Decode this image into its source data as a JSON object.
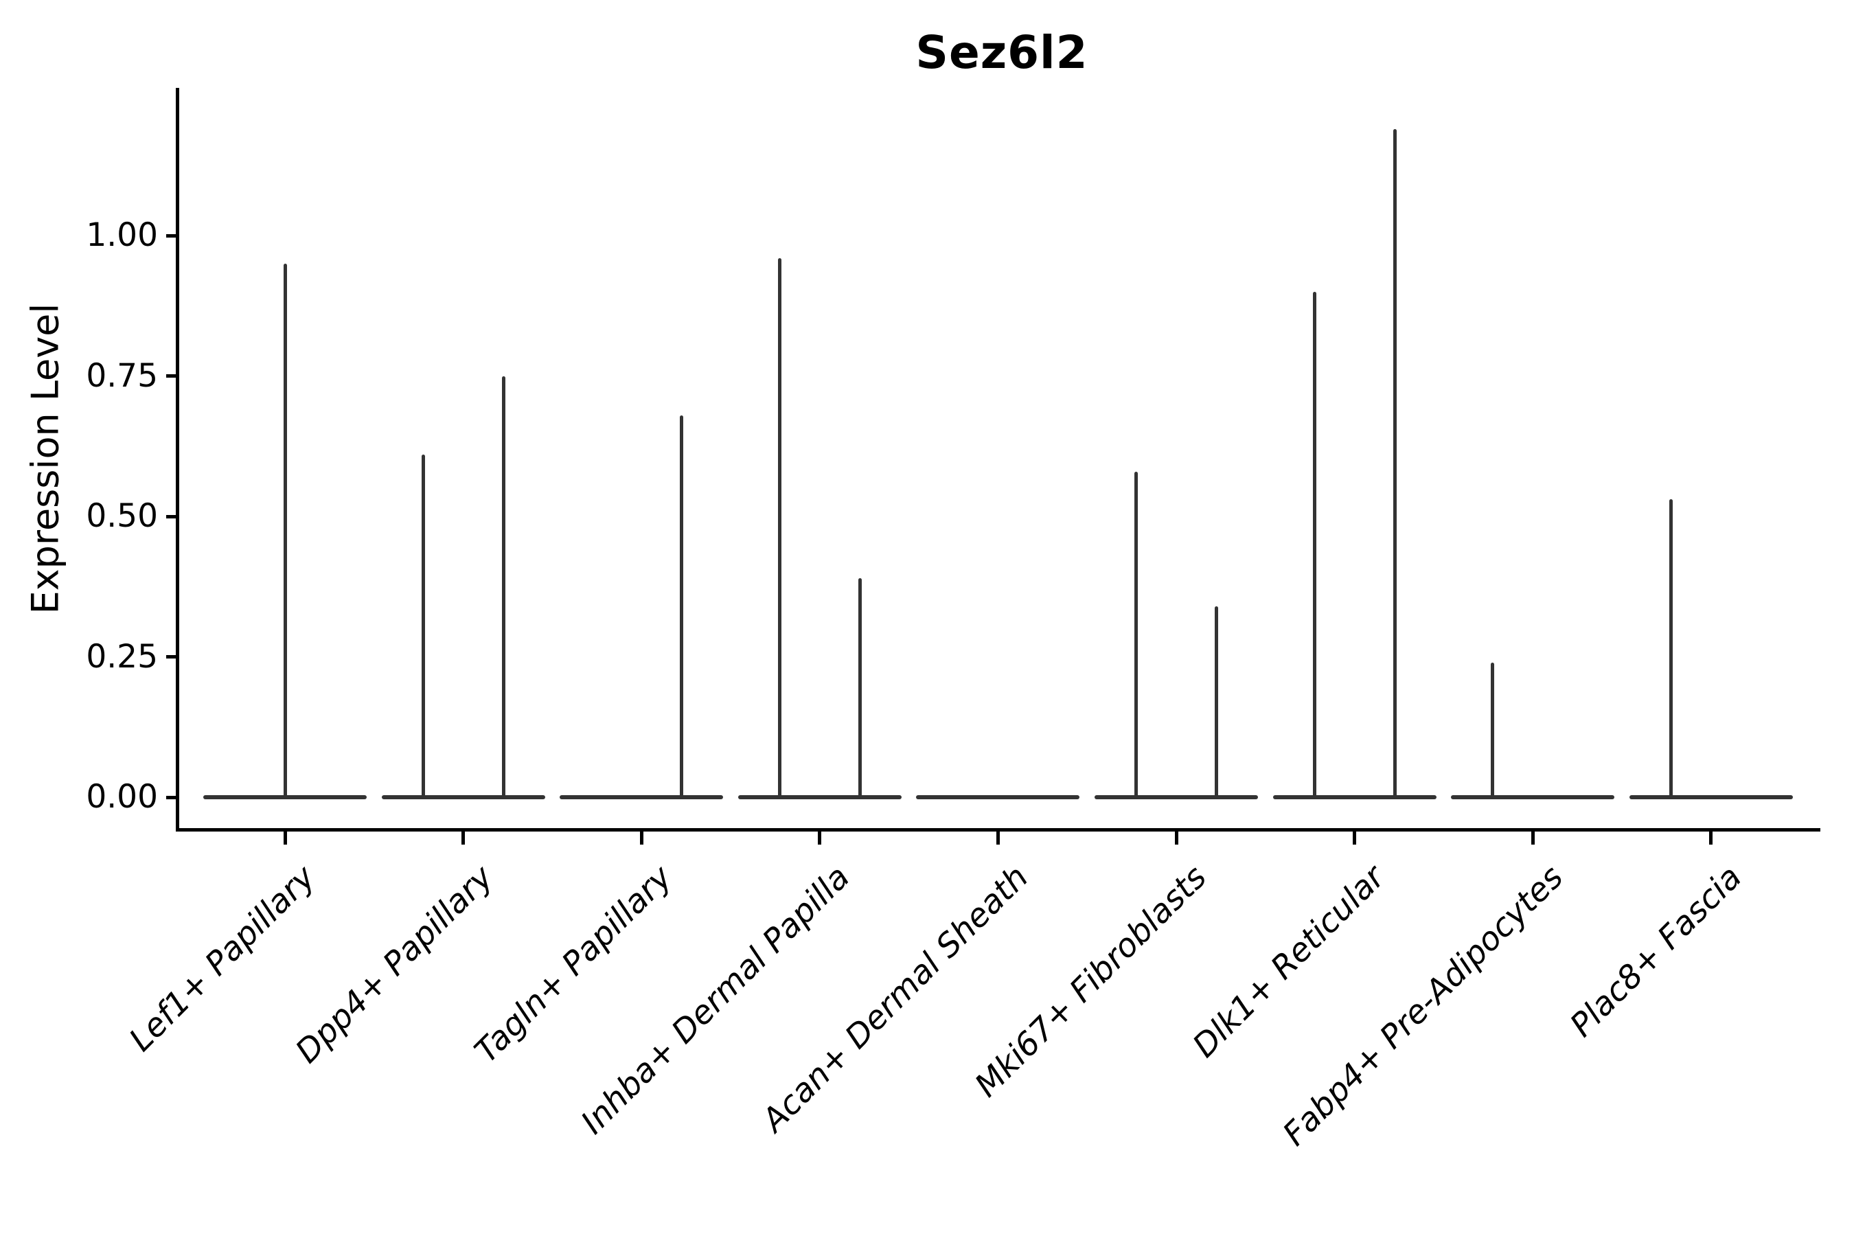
{
  "title": "Sez6l2",
  "chart_data": {
    "type": "violin",
    "title": "Sez6l2",
    "xlabel": "",
    "ylabel": "Expression Level",
    "ytick_labels": [
      "0.00",
      "0.25",
      "0.50",
      "0.75",
      "1.00"
    ],
    "ytick_values": [
      0.0,
      0.25,
      0.5,
      0.75,
      1.0
    ],
    "ylim": [
      -0.06,
      1.26
    ],
    "grid": false,
    "legend": "none",
    "categories": [
      "Lef1+ Papillary",
      "Dpp4+ Papillary",
      "Tagln+ Papillary",
      "Inhba+ Dermal Papilla",
      "Acan+ Dermal Sheath",
      "Mki67+ Fibroblasts",
      "Dlk1+ Reticular",
      "Fabp4+ Pre-Adipocytes",
      "Plac8+ Fascia"
    ],
    "violins": [
      {
        "category": "Lef1+ Papillary",
        "baseline_value": 0.0,
        "spikes": [
          {
            "slot": "center",
            "max": 0.95
          }
        ]
      },
      {
        "category": "Dpp4+ Papillary",
        "baseline_value": 0.0,
        "spikes": [
          {
            "slot": "left",
            "max": 0.61
          },
          {
            "slot": "right",
            "max": 0.75
          }
        ]
      },
      {
        "category": "Tagln+ Papillary",
        "baseline_value": 0.0,
        "spikes": [
          {
            "slot": "right",
            "max": 0.68
          }
        ]
      },
      {
        "category": "Inhba+ Dermal Papilla",
        "baseline_value": 0.0,
        "spikes": [
          {
            "slot": "left",
            "max": 0.96
          },
          {
            "slot": "right",
            "max": 0.39
          }
        ]
      },
      {
        "category": "Acan+ Dermal Sheath",
        "baseline_value": 0.0,
        "spikes": []
      },
      {
        "category": "Mki67+ Fibroblasts",
        "baseline_value": 0.0,
        "spikes": [
          {
            "slot": "left",
            "max": 0.58
          },
          {
            "slot": "right",
            "max": 0.34
          }
        ]
      },
      {
        "category": "Dlk1+ Reticular",
        "baseline_value": 0.0,
        "spikes": [
          {
            "slot": "left",
            "max": 0.9
          },
          {
            "slot": "right",
            "max": 1.19
          }
        ]
      },
      {
        "category": "Fabp4+ Pre-Adipocytes",
        "baseline_value": 0.0,
        "spikes": [
          {
            "slot": "left",
            "max": 0.24
          }
        ]
      },
      {
        "category": "Plac8+ Fascia",
        "baseline_value": 0.0,
        "spikes": [
          {
            "slot": "left",
            "max": 0.53
          }
        ]
      }
    ],
    "colors": {
      "ink": "#000000",
      "violin": "#333333",
      "background": "#ffffff"
    }
  }
}
